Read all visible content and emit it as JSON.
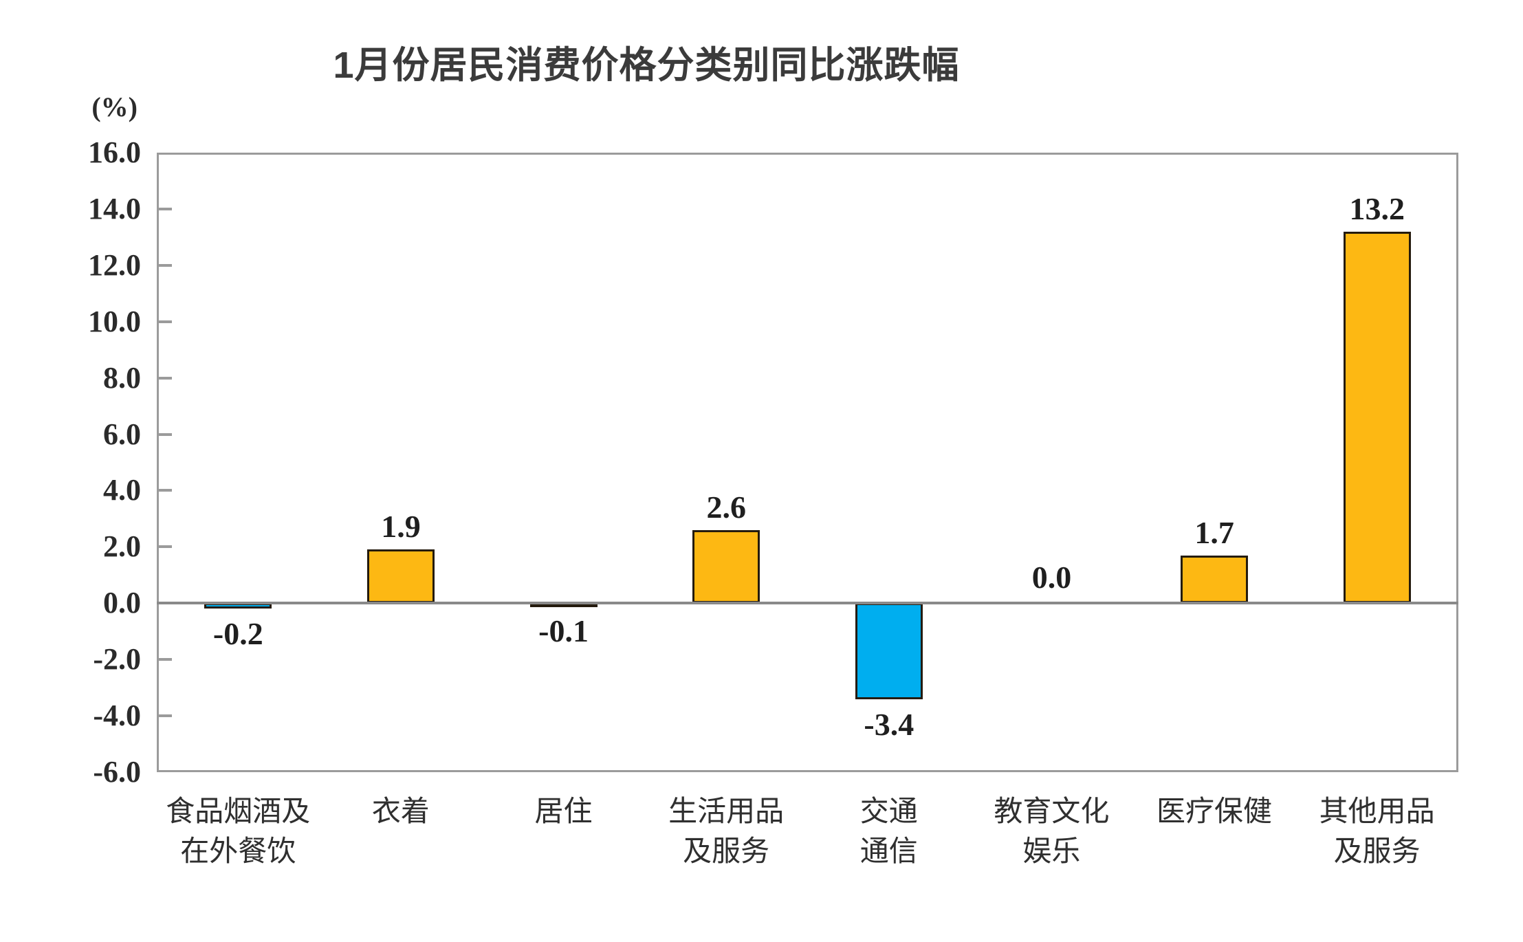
{
  "chart_data": {
    "type": "bar",
    "title": "1月份居民消费价格分类别同比涨跌幅",
    "unit_label": "(%)",
    "categories": [
      "食品烟酒及\n在外餐饮",
      "衣着",
      "居住",
      "生活用品\n及服务",
      "交通\n通信",
      "教育文化\n娱乐",
      "医疗保健",
      "其他用品\n及服务"
    ],
    "values": [
      -0.2,
      1.9,
      -0.1,
      2.6,
      -3.4,
      0.0,
      1.7,
      13.2
    ],
    "value_labels": [
      "-0.2",
      "1.9",
      "-0.1",
      "2.6",
      "-3.4",
      "0.0",
      "1.7",
      "13.2"
    ],
    "xlabel": "",
    "ylabel": "(%)",
    "ylim": [
      -6.0,
      16.0
    ],
    "ytick_step": 2.0,
    "ytick_labels": [
      "16.0",
      "14.0",
      "12.0",
      "10.0",
      "8.0",
      "6.0",
      "4.0",
      "2.0",
      "0.0",
      "-2.0",
      "-4.0",
      "-6.0"
    ],
    "grid": false,
    "legend_position": "none",
    "colors": {
      "positive_bar": "#FDB813",
      "negative_bar": "#00AEEF",
      "bar_border": "#241b0e",
      "axis": "#9b9b9b",
      "zero_line": "#8a8a8a",
      "text": "#2b2b2b",
      "title_text": "#3b3b3b"
    }
  }
}
